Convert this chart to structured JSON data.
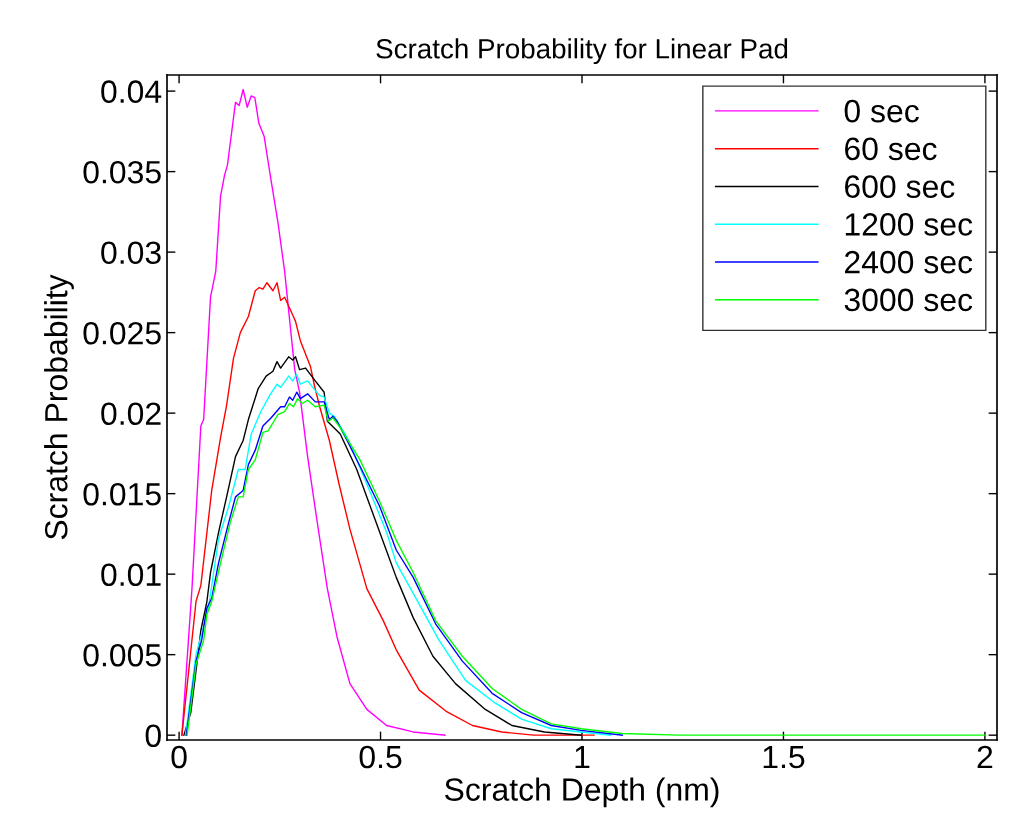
{
  "chart_data": {
    "type": "line",
    "title": "Scratch Probability for Linear Pad",
    "xlabel": "Scratch Depth (nm)",
    "ylabel": "Scratch Probability",
    "xlim": [
      -0.03,
      2.03
    ],
    "ylim": [
      -0.0003,
      0.041
    ],
    "xticks": [
      0,
      0.5,
      1,
      1.5,
      2
    ],
    "yticks": [
      0,
      0.005,
      0.01,
      0.015,
      0.02,
      0.025,
      0.03,
      0.035,
      0.04
    ],
    "grid": false,
    "legend": "top right",
    "marker": "none",
    "line_style": "solid",
    "series": [
      {
        "name": "0 sec",
        "color": "#ff00ff",
        "x": [
          0.007,
          0.032,
          0.054,
          0.061,
          0.078,
          0.091,
          0.103,
          0.113,
          0.12,
          0.14,
          0.149,
          0.159,
          0.169,
          0.179,
          0.188,
          0.198,
          0.211,
          0.228,
          0.245,
          0.262,
          0.287,
          0.299,
          0.319,
          0.343,
          0.368,
          0.392,
          0.424,
          0.466,
          0.515,
          0.581,
          0.66
        ],
        "values": [
          0,
          0.0091,
          0.0192,
          0.0196,
          0.0272,
          0.0288,
          0.0335,
          0.0348,
          0.0354,
          0.0393,
          0.0391,
          0.0401,
          0.039,
          0.0397,
          0.0396,
          0.038,
          0.0372,
          0.0345,
          0.0319,
          0.0288,
          0.0227,
          0.0213,
          0.0173,
          0.0132,
          0.0091,
          0.0061,
          0.0032,
          0.0016,
          0.0006,
          0.0002,
          0
        ]
      },
      {
        "name": "60 sec",
        "color": "#ff0000",
        "x": [
          0.007,
          0.042,
          0.054,
          0.081,
          0.103,
          0.118,
          0.135,
          0.152,
          0.172,
          0.189,
          0.199,
          0.208,
          0.218,
          0.233,
          0.243,
          0.252,
          0.262,
          0.282,
          0.289,
          0.301,
          0.326,
          0.336,
          0.35,
          0.373,
          0.397,
          0.424,
          0.466,
          0.507,
          0.539,
          0.596,
          0.662,
          0.728,
          0.801,
          0.88,
          1.03
        ],
        "values": [
          0,
          0.0083,
          0.0093,
          0.0152,
          0.0185,
          0.0205,
          0.0234,
          0.025,
          0.026,
          0.0276,
          0.0278,
          0.0277,
          0.0281,
          0.0276,
          0.0281,
          0.027,
          0.0272,
          0.0261,
          0.0257,
          0.0245,
          0.0229,
          0.0217,
          0.0203,
          0.0183,
          0.0156,
          0.0128,
          0.0091,
          0.0071,
          0.0053,
          0.0028,
          0.0015,
          0.0006,
          0.0002,
          0,
          0
        ]
      },
      {
        "name": "600 sec",
        "color": "#000000",
        "x": [
          0.012,
          0.029,
          0.042,
          0.054,
          0.069,
          0.078,
          0.098,
          0.118,
          0.14,
          0.159,
          0.172,
          0.196,
          0.216,
          0.233,
          0.243,
          0.252,
          0.272,
          0.282,
          0.289,
          0.299,
          0.314,
          0.338,
          0.36,
          0.368,
          0.4,
          0.441,
          0.498,
          0.539,
          0.581,
          0.63,
          0.686,
          0.76,
          0.826,
          0.907,
          0.998
        ],
        "values": [
          0,
          0.0014,
          0.004,
          0.0065,
          0.0083,
          0.0101,
          0.0126,
          0.0148,
          0.0173,
          0.0183,
          0.0196,
          0.0215,
          0.0223,
          0.0226,
          0.0232,
          0.0228,
          0.0235,
          0.0233,
          0.0235,
          0.0227,
          0.0228,
          0.022,
          0.0213,
          0.0195,
          0.0187,
          0.0165,
          0.0126,
          0.0098,
          0.0073,
          0.0049,
          0.0032,
          0.0016,
          0.0006,
          0.0002,
          0
        ]
      },
      {
        "name": "1200 sec",
        "color": "#00ffff",
        "x": [
          0.016,
          0.042,
          0.054,
          0.074,
          0.098,
          0.123,
          0.147,
          0.164,
          0.179,
          0.203,
          0.225,
          0.243,
          0.252,
          0.272,
          0.282,
          0.292,
          0.301,
          0.319,
          0.348,
          0.36,
          0.373,
          0.385,
          0.417,
          0.466,
          0.515,
          0.539,
          0.588,
          0.645,
          0.711,
          0.784,
          0.85,
          0.924,
          0.998,
          1.071
        ],
        "values": [
          0,
          0.005,
          0.0061,
          0.0081,
          0.0122,
          0.0142,
          0.0165,
          0.0165,
          0.0187,
          0.0201,
          0.0211,
          0.0218,
          0.0216,
          0.0223,
          0.022,
          0.0224,
          0.0218,
          0.022,
          0.0211,
          0.021,
          0.02,
          0.0198,
          0.0185,
          0.0156,
          0.0126,
          0.0107,
          0.0085,
          0.0059,
          0.0034,
          0.002,
          0.001,
          0.0004,
          0.0002,
          0
        ]
      },
      {
        "name": "2400 sec",
        "color": "#0000ff",
        "x": [
          0.018,
          0.042,
          0.056,
          0.069,
          0.081,
          0.098,
          0.123,
          0.14,
          0.159,
          0.172,
          0.189,
          0.208,
          0.228,
          0.252,
          0.262,
          0.274,
          0.282,
          0.292,
          0.301,
          0.319,
          0.338,
          0.36,
          0.373,
          0.382,
          0.392,
          0.417,
          0.449,
          0.498,
          0.539,
          0.581,
          0.637,
          0.703,
          0.777,
          0.85,
          0.924,
          0.998,
          1.1
        ],
        "values": [
          0,
          0.0046,
          0.0059,
          0.0079,
          0.0085,
          0.0107,
          0.0132,
          0.0148,
          0.0152,
          0.0168,
          0.0177,
          0.0192,
          0.0197,
          0.0204,
          0.0204,
          0.021,
          0.0208,
          0.0213,
          0.0209,
          0.0212,
          0.0207,
          0.0207,
          0.0196,
          0.0198,
          0.0195,
          0.0183,
          0.0167,
          0.0142,
          0.0115,
          0.0098,
          0.0069,
          0.0046,
          0.0026,
          0.0014,
          0.0006,
          0.0003,
          0
        ]
      },
      {
        "name": "3000 sec",
        "color": "#00ff00",
        "x": [
          0.02,
          0.042,
          0.061,
          0.069,
          0.081,
          0.103,
          0.127,
          0.147,
          0.159,
          0.172,
          0.189,
          0.208,
          0.221,
          0.245,
          0.262,
          0.274,
          0.284,
          0.294,
          0.306,
          0.319,
          0.338,
          0.36,
          0.37,
          0.382,
          0.4,
          0.449,
          0.498,
          0.539,
          0.581,
          0.637,
          0.703,
          0.777,
          0.85,
          0.924,
          0.998,
          1.1,
          1.24,
          2.0
        ],
        "values": [
          0,
          0.0044,
          0.0059,
          0.0075,
          0.0083,
          0.0107,
          0.0132,
          0.0148,
          0.0148,
          0.0165,
          0.0171,
          0.0188,
          0.0189,
          0.0199,
          0.0201,
          0.0206,
          0.0204,
          0.0209,
          0.0206,
          0.0208,
          0.0204,
          0.0205,
          0.0195,
          0.0197,
          0.0191,
          0.0171,
          0.0145,
          0.0121,
          0.0101,
          0.0071,
          0.0049,
          0.0029,
          0.0016,
          0.0007,
          0.0004,
          0.0001,
          0,
          0
        ]
      }
    ]
  }
}
